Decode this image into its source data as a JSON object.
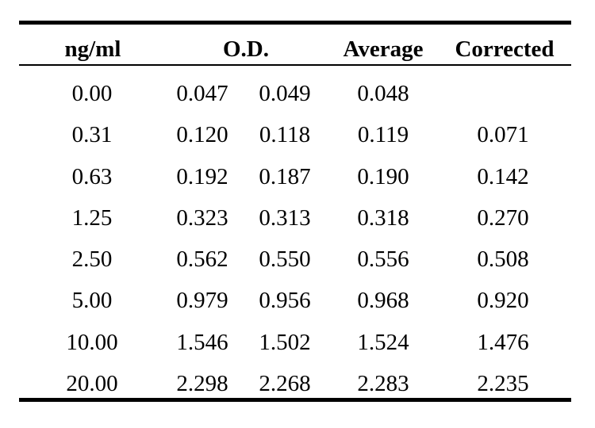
{
  "table": {
    "headers": {
      "concentration": "ng/ml",
      "od": "O.D.",
      "average": "Average",
      "corrected": "Corrected"
    },
    "rows": [
      {
        "ng": "0.00",
        "od1": "0.047",
        "od2": "0.049",
        "avg": "0.048",
        "cor": ""
      },
      {
        "ng": "0.31",
        "od1": "0.120",
        "od2": "0.118",
        "avg": "0.119",
        "cor": "0.071"
      },
      {
        "ng": "0.63",
        "od1": "0.192",
        "od2": "0.187",
        "avg": "0.190",
        "cor": "0.142"
      },
      {
        "ng": "1.25",
        "od1": "0.323",
        "od2": "0.313",
        "avg": "0.318",
        "cor": "0.270"
      },
      {
        "ng": "2.50",
        "od1": "0.562",
        "od2": "0.550",
        "avg": "0.556",
        "cor": "0.508"
      },
      {
        "ng": "5.00",
        "od1": "0.979",
        "od2": "0.956",
        "avg": "0.968",
        "cor": "0.920"
      },
      {
        "ng": "10.00",
        "od1": "1.546",
        "od2": "1.502",
        "avg": "1.524",
        "cor": "1.476"
      },
      {
        "ng": "20.00",
        "od1": "2.298",
        "od2": "2.268",
        "avg": "2.283",
        "cor": "2.235"
      }
    ]
  }
}
